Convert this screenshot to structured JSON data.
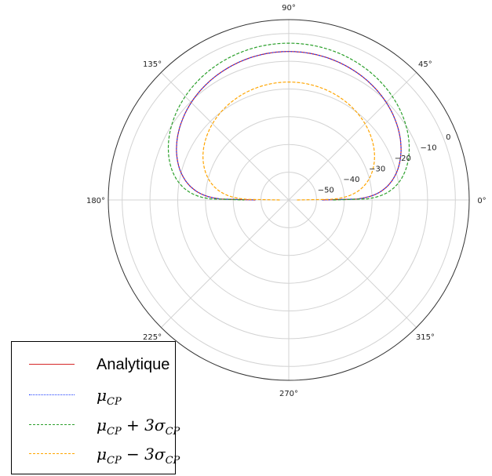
{
  "chart_data": {
    "type": "line",
    "projection": "polar",
    "angle_ticks": [
      "0°",
      "45°",
      "90°",
      "135°",
      "180°",
      "225°",
      "270°",
      "315°"
    ],
    "radial_ticks": [
      "−50",
      "−40",
      "−30",
      "−20",
      "−10",
      "0"
    ],
    "radial_range": [
      -60,
      5
    ],
    "grid": true,
    "legend": {
      "placement": "bottom-left"
    },
    "series": [
      {
        "name": "Analytique",
        "name_parts": [
          "Analytique"
        ],
        "color": "#d62728",
        "style": "solid",
        "peak": -6.5,
        "floor": -48
      },
      {
        "name": "μCP",
        "name_parts": [
          "μ",
          "CP"
        ],
        "color": "#1f3fff",
        "style": "dotted",
        "peak": -6.5,
        "floor": -48
      },
      {
        "name": "μCP + 3σCP",
        "name_parts": [
          "μ",
          "CP",
          " + 3σ",
          "CP"
        ],
        "color": "#2ca02c",
        "style": "dashed",
        "peak": -3.5,
        "floor": -44
      },
      {
        "name": "μCP − 3σCP",
        "name_parts": [
          "μ",
          "CP",
          " − 3σ",
          "CP"
        ],
        "color": "#ffa500",
        "style": "dashed",
        "peak": -17.5,
        "floor": -57
      }
    ]
  }
}
